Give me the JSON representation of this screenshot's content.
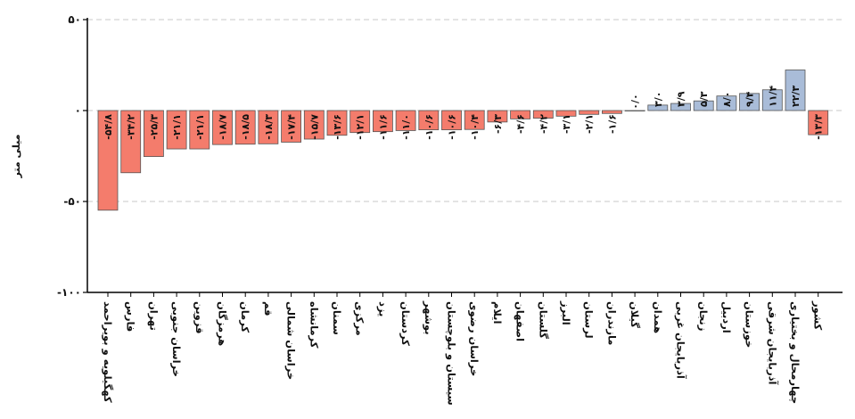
{
  "chart_data": {
    "type": "bar",
    "title": "",
    "xlabel": "",
    "ylabel": "میلی متر",
    "ylim": [
      -100,
      50
    ],
    "yticks": [
      {
        "value": 50,
        "label": "۵۰"
      },
      {
        "value": 0,
        "label": "۰"
      },
      {
        "value": -50,
        "label": "-۵۰"
      },
      {
        "value": -100,
        "label": "-۱۰۰"
      }
    ],
    "grid": true,
    "negative_color": "#f47c6c",
    "positive_color": "#a9bcd8",
    "bar_edge_color": "#555555",
    "categories": [
      "کهگیلویه و بویراحمد",
      "فارس",
      "تهران",
      "خراسان جنوبی",
      "قزوین",
      "هرمزگان",
      "کرمان",
      "قم",
      "خراسان شمالی",
      "کرمانشاه",
      "سمنان",
      "مرکزی",
      "یزد",
      "کردستان",
      "بوشهر",
      "سیستان و بلوچستان",
      "خراسان رضوی",
      "ایلام",
      "اصفهان",
      "گلستان",
      "البرز",
      "لرستان",
      "مازندران",
      "گیلان",
      "همدان",
      "آذربایجان غربی",
      "زنجان",
      "اردبیل",
      "خوزستان",
      "آذربایجان شرقی",
      "چهارمحال و بختیاری",
      "کشور"
    ],
    "values": [
      -54.8,
      -34.2,
      -25.3,
      -21.1,
      -21.1,
      -18.7,
      -18.5,
      -18.3,
      -17.4,
      -15.7,
      -13.6,
      -12.1,
      -11.6,
      -11.0,
      -10.6,
      -10.6,
      -10.4,
      -6.3,
      -4.6,
      -4.2,
      -3.1,
      -2.1,
      -1.6,
      0.0,
      3.0,
      3.9,
      5.3,
      8.0,
      9.4,
      11.4,
      22.3,
      -13.3
    ],
    "value_labels": [
      "-۵۴/۸",
      "-۳۴/۲",
      "-۲۵/۳",
      "-۲۱/۱",
      "-۲۱/۱",
      "-۱۸/۷",
      "-۱۸/۵",
      "-۱۸/۳",
      "-۱۷/۴",
      "-۱۵/۷",
      "-۱۳/۶",
      "-۱۲/۱",
      "-۱۱/۶",
      "-۱۱/۰",
      "-۱۰/۶",
      "-۱۰/۶",
      "-۱۰/۴",
      "-۶/۳",
      "-۴/۶",
      "-۴/۲",
      "-۳/۱",
      "-۲/۱",
      "-۱/۶",
      "۰/۰",
      "۳/۰",
      "۳/۹",
      "۵/۳",
      "۸/۰",
      "۹/۴",
      "۱۱/۴",
      "۲۲/۳",
      "-۱۳/۳"
    ]
  }
}
